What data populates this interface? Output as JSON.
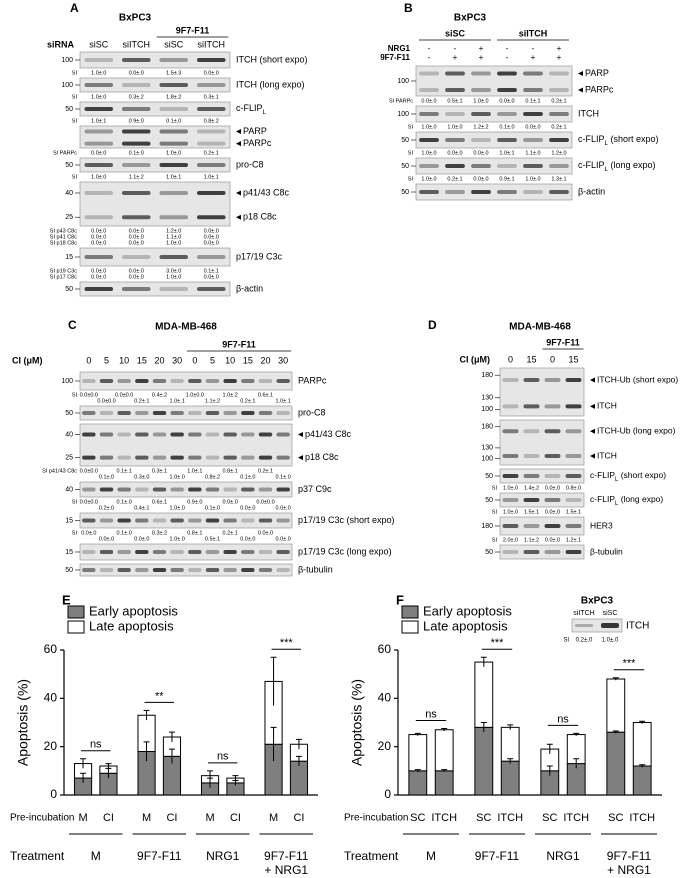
{
  "panels": {
    "A": {
      "letter": "A",
      "title": "BxPC3",
      "row_label": "siRNA",
      "lanes": [
        "siSC",
        "siITCH",
        "siSC",
        "siITCH"
      ],
      "group": "9F7-F11",
      "blots": [
        {
          "markers": [
            100
          ],
          "labels": [
            "ITCH (short expo)"
          ],
          "si": [
            {
              "label": "SI",
              "values": [
                "1.0±.0",
                "0.0±.0",
                "1.5±.3",
                "0.0±.0"
              ]
            }
          ]
        },
        {
          "markers": [
            100
          ],
          "labels": [
            "ITCH (long expo)"
          ],
          "si": [
            {
              "label": "SI",
              "values": [
                "1.0±.0",
                "0.3±.2",
                "1.8±.2",
                "0.3±.1"
              ]
            }
          ]
        },
        {
          "markers": [
            50
          ],
          "labels": [
            {
              "text": "c-FLIP",
              "sub": "L",
              "rest": ""
            }
          ],
          "si": [
            {
              "label": "SI",
              "values": [
                "1.0±.1",
                "0.9±.0",
                "0.1±.0",
                "0.8±.2"
              ]
            }
          ]
        },
        {
          "markers": [],
          "labels": [
            "PARP",
            "PARPc"
          ],
          "si": [
            {
              "label": "SI PARPc",
              "values": [
                "0.0±.0",
                "0.1±.0",
                "1.0±.0",
                "0.2±.1"
              ]
            }
          ]
        },
        {
          "markers": [
            50
          ],
          "labels": [
            "pro-C8"
          ],
          "si": [
            {
              "label": "SI",
              "values": [
                "1.0±.0",
                "1.1±.2",
                "1.0±.1",
                "1.0±.1"
              ]
            }
          ]
        },
        {
          "markers": [
            40,
            25
          ],
          "labels": [
            "p41/43 C8c",
            "p18 C8c"
          ],
          "si": [
            {
              "label": "SI p43 C8c",
              "values": [
                "0.0±.0",
                "0.0±.0",
                "1.2±.0",
                "0.0±.0"
              ]
            },
            {
              "label": "SI p41 C8c",
              "values": [
                "0.0±.0",
                "0.0±.0",
                "1.1±.0",
                "0.0±.0"
              ]
            },
            {
              "label": "SI p18 C8c",
              "values": [
                "0.0±.0",
                "0.0±.0",
                "1.0±.0",
                "0.0±.0"
              ]
            }
          ]
        },
        {
          "markers": [
            15
          ],
          "labels": [
            "p17/19 C3c"
          ],
          "si": [
            {
              "label": "SI p19 C3c",
              "values": [
                "0.0±.0",
                "0.0±.0",
                "3.0±.0",
                "0.1±.1"
              ]
            },
            {
              "label": "SI p17 C8c",
              "values": [
                "0.0±.0",
                "0.0±.0",
                "1.0±.0",
                "0.0±.0"
              ]
            }
          ]
        },
        {
          "markers": [
            50
          ],
          "labels": [
            "β-actin"
          ],
          "si": []
        }
      ]
    },
    "B": {
      "letter": "B",
      "title": "BxPC3",
      "groups": [
        "siSC",
        "siITCH"
      ],
      "rows": [
        {
          "label": "NRG1",
          "values": [
            "-",
            "-",
            "+",
            "-",
            "-",
            "+"
          ]
        },
        {
          "label": "9F7-F11",
          "values": [
            "-",
            "+",
            "+",
            "-",
            "+",
            "+"
          ]
        }
      ],
      "blots": [
        {
          "markers": [
            100
          ],
          "labels": [
            "PARP",
            "PARPc"
          ],
          "si": [
            {
              "label": "SI PARPc",
              "values": [
                "0.0±.0",
                "0.5±.1",
                "1.0±.0",
                "0.0±.0",
                "0.1±.1",
                "0.2±.1"
              ]
            }
          ]
        },
        {
          "markers": [
            100
          ],
          "labels": [
            "ITCH"
          ],
          "si": [
            {
              "label": "SI",
              "values": [
                "1.0±.0",
                "1.0±.0",
                "1.2±.2",
                "0.1±.0",
                "0.0±.0",
                "0.2±.1"
              ]
            }
          ]
        },
        {
          "markers": [
            50
          ],
          "labels": [
            {
              "text": "c-FLIP",
              "sub": "L",
              "rest": " (short expo)"
            }
          ],
          "si": [
            {
              "label": "SI",
              "values": [
                "1.0±.0",
                "0.0±.0",
                "0.0±.0",
                "1.0±.1",
                "1.1±.0",
                "1.2±.0"
              ]
            }
          ]
        },
        {
          "markers": [
            50
          ],
          "labels": [
            {
              "text": "c-FLIP",
              "sub": "L",
              "rest": " (long expo)"
            }
          ],
          "si": [
            {
              "label": "SI",
              "values": [
                "1.0±.0",
                "0.2±.1",
                "0.0±.0",
                "0.9±.1",
                "1.0±.0",
                "1.3±.1"
              ]
            }
          ]
        },
        {
          "markers": [
            50
          ],
          "labels": [
            "β-actin"
          ],
          "si": []
        }
      ]
    },
    "C": {
      "letter": "C",
      "title": "MDA-MB-468",
      "group": "9F7-F11",
      "row_label": "CI (μM)",
      "lanes": [
        0,
        5,
        10,
        15,
        20,
        30,
        0,
        5,
        10,
        15,
        20,
        30
      ],
      "blots": [
        {
          "markers": [
            100
          ],
          "labels": [
            "PARPc"
          ],
          "si": [
            {
              "label": "SI",
              "values": [
                "0.0±0.0",
                "0.0±0.0",
                "0.0±0.0",
                "0.2±.1",
                "0.4±.2",
                "1.0±.1",
                "1.0±0.0",
                "1.1±.2",
                "1.0±.2",
                "0.2±.1",
                "0.6±.1",
                "1.0±.1"
              ]
            }
          ]
        },
        {
          "markers": [
            50
          ],
          "labels": [
            "pro-C8"
          ],
          "si": []
        },
        {
          "markers": [
            40,
            25
          ],
          "labels": [
            "p41/43 C8c",
            "p18 C8c"
          ],
          "si": [
            {
              "label": "SI p41/43 C8c",
              "values": [
                "0.0±0.0",
                "0.1±.0",
                "0.1±.1",
                "0.3±.0",
                "0.3±.1",
                "1.0±.0",
                "1.0±.1",
                "0.8±.2",
                "0.8±.1",
                "0.1±.0",
                "0.2±.1",
                "0.1±.0"
              ]
            }
          ]
        },
        {
          "markers": [
            40
          ],
          "labels": [
            "p37 C9c"
          ],
          "si": [
            {
              "label": "SI",
              "values": [
                "0.0±0.0",
                "0.2±.0",
                "0.1±.0",
                "0.4±.1",
                "0.6±.1",
                "1.0±.0",
                "0.9±.0",
                "0.1±.0",
                "0.0±.0",
                "0.0±.0",
                "0.0±0.0",
                "0.0±.0"
              ]
            }
          ]
        },
        {
          "markers": [
            15
          ],
          "labels": [
            "p17/19 C3c (short expo)"
          ],
          "si": [
            {
              "label": "SI",
              "values": [
                "0.0±.0",
                "0.0±.0",
                "0.1±.0",
                "0.0±.0",
                "0.3±.2",
                "1.0±.0",
                "0.8±.1",
                "0.5±.1",
                "0.2±.1",
                "0.0±.0",
                "0.0±.0",
                "0.0±.0"
              ]
            }
          ]
        },
        {
          "markers": [
            15
          ],
          "labels": [
            "p17/19 C3c (long expo)"
          ],
          "si": []
        },
        {
          "markers": [
            50
          ],
          "labels": [
            "β-tubulin"
          ],
          "si": []
        }
      ]
    },
    "D": {
      "letter": "D",
      "title": "MDA-MB-468",
      "group": "9F7-F11",
      "row_label": "CI (μM)",
      "lanes": [
        0,
        15,
        0,
        15
      ],
      "blots": [
        {
          "markers": [
            180,
            130,
            100
          ],
          "labels": [
            "ITCH-Ub (short expo)",
            "ITCH"
          ],
          "si": []
        },
        {
          "markers": [
            180,
            130,
            100
          ],
          "labels": [
            "ITCH-Ub (long expo)",
            "ITCH"
          ],
          "si": []
        },
        {
          "markers": [
            50
          ],
          "labels": [
            {
              "text": "c-FLIP",
              "sub": "L",
              "rest": " (short expo)"
            }
          ],
          "si": [
            {
              "label": "SI",
              "values": [
                "1.0±.0",
                "1.4±.2",
                "0.0±.0",
                "0.8±.0"
              ]
            }
          ]
        },
        {
          "markers": [
            50
          ],
          "labels": [
            {
              "text": "c-FLIP",
              "sub": "L",
              "rest": " (long expo)"
            }
          ],
          "si": [
            {
              "label": "SI",
              "values": [
                "1.0±.0",
                "1.5±.1",
                "0.0±.0",
                "1.5±.1"
              ]
            }
          ]
        },
        {
          "markers": [
            180
          ],
          "labels": [
            "HER3"
          ],
          "si": [
            {
              "label": "SI",
              "values": [
                "2.0±.0",
                "1.1±.2",
                "0.0±.0",
                "1.2±.1"
              ]
            }
          ]
        },
        {
          "markers": [
            50
          ],
          "labels": [
            "β-tubulin"
          ],
          "si": []
        }
      ]
    }
  },
  "chart_data": [
    {
      "type": "bar",
      "letter": "E",
      "y_label": "Apoptosis (%)",
      "ylim": [
        0,
        60
      ],
      "yticks": [
        0,
        20,
        40,
        60
      ],
      "legend": "upper left",
      "category_axis_label": "Pre-incubation",
      "categories": [
        "M",
        "CI",
        "M",
        "CI",
        "M",
        "CI",
        "M",
        "CI"
      ],
      "group_axis_label": "Treatment",
      "groups": [
        [
          "M"
        ],
        [
          "9F7-F11"
        ],
        [
          "NRG1"
        ],
        [
          "9F7-F11",
          "+ NRG1"
        ]
      ],
      "significance": [
        "ns",
        "**",
        "ns",
        "***"
      ],
      "series": [
        {
          "name": "Early apoptosis",
          "color": "#7f7f7f",
          "values": [
            7,
            9,
            18,
            16,
            5,
            5,
            21,
            14
          ],
          "errors": [
            2,
            2,
            4,
            3,
            2,
            1,
            7,
            2
          ]
        },
        {
          "name": "Late apoptosis",
          "color": "#ffffff",
          "values": [
            6,
            3,
            15,
            8,
            3,
            2,
            26,
            7
          ],
          "errors": [
            2,
            1,
            2,
            2,
            2,
            1,
            10,
            2
          ]
        }
      ]
    },
    {
      "type": "bar",
      "letter": "F",
      "y_label": "Apoptosis (%)",
      "ylim": [
        0,
        60
      ],
      "yticks": [
        0,
        20,
        40,
        60
      ],
      "legend": "upper left",
      "category_axis_label": "Pre-incubation",
      "categories": [
        "SC",
        "ITCH",
        "SC",
        "ITCH",
        "SC",
        "ITCH",
        "SC",
        "ITCH"
      ],
      "group_axis_label": "Treatment",
      "groups": [
        [
          "M"
        ],
        [
          "9F7-F11"
        ],
        [
          "NRG1"
        ],
        [
          "9F7-F11",
          "+ NRG1"
        ]
      ],
      "significance": [
        "ns",
        "***",
        "ns",
        "***"
      ],
      "series": [
        {
          "name": "Early apoptosis",
          "color": "#7f7f7f",
          "values": [
            10,
            10,
            28,
            14,
            10,
            13,
            26,
            12
          ],
          "errors": [
            0.5,
            0.5,
            2,
            1,
            2,
            2,
            0.5,
            0.5
          ]
        },
        {
          "name": "Late apoptosis",
          "color": "#ffffff",
          "values": [
            15,
            17,
            27,
            14,
            9,
            12,
            22,
            18
          ],
          "errors": [
            0.5,
            0.5,
            2,
            1,
            2,
            0.5,
            0.5,
            0.5
          ]
        }
      ],
      "inset": {
        "title": "BxPC3",
        "lanes": [
          "siITCH",
          "siSC"
        ],
        "label": "ITCH",
        "si_label": "SI",
        "si": [
          "0.2±.0",
          "1.0±.0"
        ]
      }
    }
  ]
}
